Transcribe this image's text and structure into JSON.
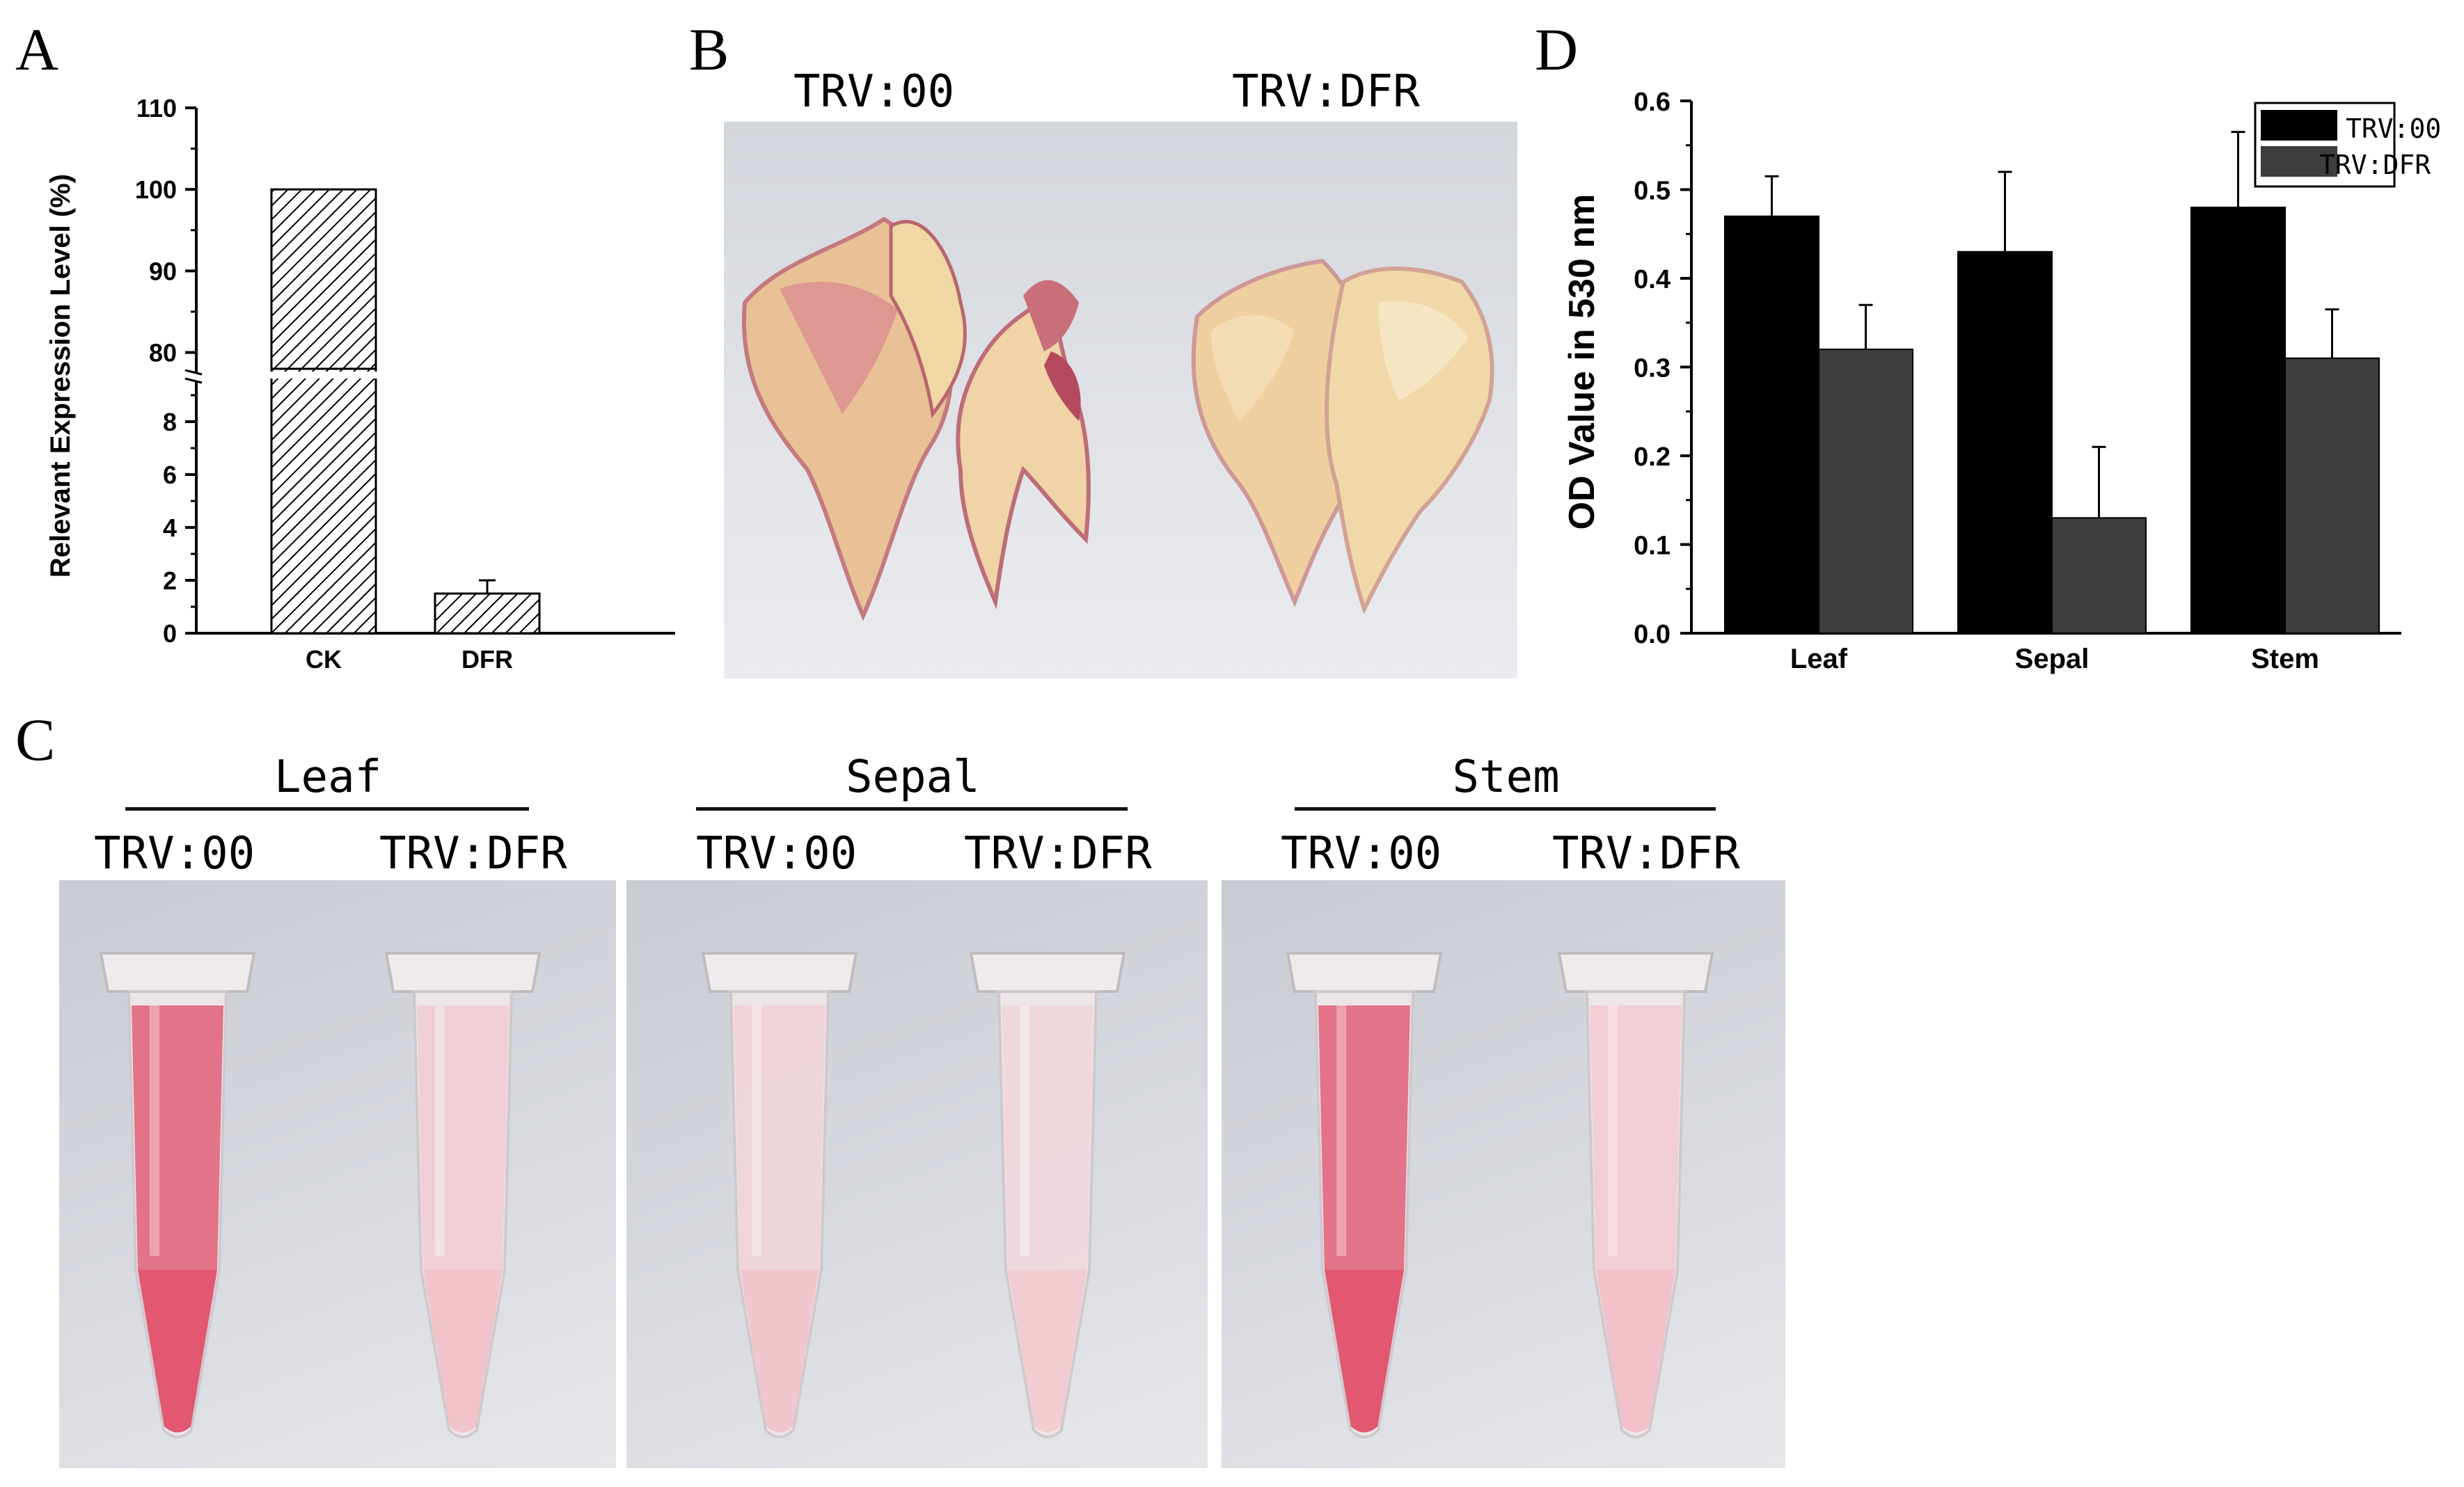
{
  "panels": {
    "a": "A",
    "b": "B",
    "c": "C",
    "d": "D"
  },
  "colors": {
    "trv00_bar": "#000000",
    "trvdfr_bar": "#3d3d3d",
    "pink_dark": "#e0566f",
    "pink_light": "#f3bcc4",
    "background_photo": "#d4d6dc"
  },
  "panel_b": {
    "left_label": "TRV:00",
    "right_label": "TRV:DFR"
  },
  "panel_c": {
    "groups": [
      {
        "name": "Leaf",
        "left": "TRV:00",
        "right": "TRV:DFR"
      },
      {
        "name": "Sepal",
        "left": "TRV:00",
        "right": "TRV:DFR"
      },
      {
        "name": "Stem",
        "left": "TRV:00",
        "right": "TRV:DFR"
      }
    ]
  },
  "chart_data": [
    {
      "id": "A",
      "type": "bar",
      "title": "",
      "xlabel": "",
      "ylabel": "Relevant Expression Level (%)",
      "categories": [
        "CK",
        "DFR"
      ],
      "values": [
        100,
        1.5
      ],
      "errors": [
        0,
        0.5
      ],
      "axis_break": {
        "lower": [
          0,
          10
        ],
        "upper": [
          78,
          110
        ]
      },
      "lower_ticks": [
        "0",
        "2",
        "4",
        "6",
        "8"
      ],
      "upper_ticks": [
        "80",
        "90",
        "100",
        "110"
      ],
      "fill": "hatched"
    },
    {
      "id": "D",
      "type": "bar",
      "title": "",
      "xlabel": "",
      "ylabel": "OD Value in 530 nm",
      "categories": [
        "Leaf",
        "Sepal",
        "Stem"
      ],
      "ylim": [
        0,
        0.6
      ],
      "y_ticks": [
        "0.0",
        "0.1",
        "0.2",
        "0.3",
        "0.4",
        "0.5",
        "0.6"
      ],
      "legend_position": "top-right",
      "series": [
        {
          "name": "TRV:00",
          "values": [
            0.47,
            0.43,
            0.48
          ],
          "errors": [
            0.045,
            0.09,
            0.085
          ]
        },
        {
          "name": "TRV:DFR",
          "values": [
            0.32,
            0.13,
            0.31
          ],
          "errors": [
            0.05,
            0.08,
            0.055
          ]
        }
      ]
    }
  ]
}
